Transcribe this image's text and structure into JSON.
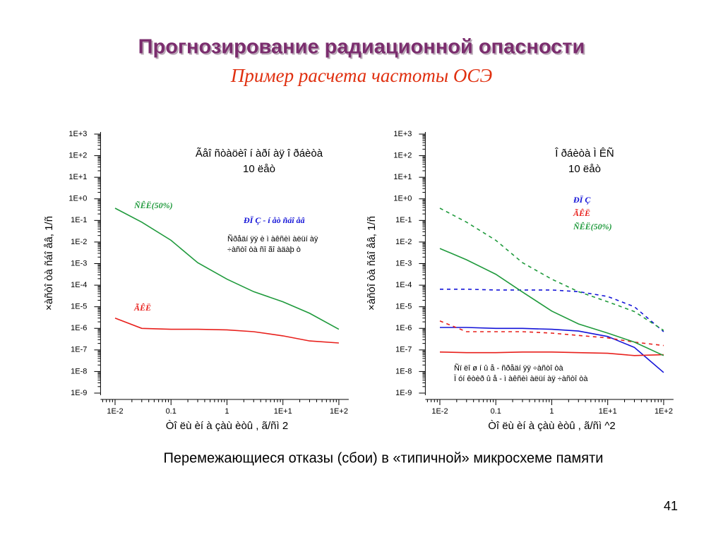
{
  "title": "Прогнозирование радиационной опасности",
  "subtitle": "Пример расчета частоты ОСЭ",
  "caption": "Перемежающиеся отказы (сбои) в «типичной» микросхеме памяти",
  "page_number": "41",
  "chart_data": [
    {
      "type": "line",
      "title": [
        "Ãåî ñòàöèî í àðí àÿ î ðáèòà",
        "10 ëåò"
      ],
      "x_label": "Òî ëù èí à çàù èòû , ã/ñì 2",
      "y_label": "×àñòî òà ñáî åâ, 1/ñ",
      "x_log": true,
      "y_log": true,
      "xlim": [
        0.0055,
        150
      ],
      "ylim": [
        1e-09,
        1000
      ],
      "xticks": [
        {
          "value": 0.01,
          "label": "1E-2"
        },
        0.1,
        1,
        {
          "value": 10,
          "label": "1E+1"
        },
        {
          "value": 100,
          "label": "1E+2"
        }
      ],
      "yticks": [
        {
          "value": 1000,
          "label": "1E+3"
        },
        {
          "value": 100,
          "label": "1E+2"
        },
        {
          "value": 10,
          "label": "1E+1"
        },
        {
          "value": 1,
          "label": "1E+0"
        },
        {
          "value": 0.1,
          "label": "1E-1"
        },
        {
          "value": 0.01,
          "label": "1E-2"
        },
        {
          "value": 0.001,
          "label": "1E-3"
        },
        {
          "value": 0.0001,
          "label": "1E-4"
        },
        {
          "value": 1e-05,
          "label": "1E-5"
        },
        {
          "value": 1e-06,
          "label": "1E-6"
        },
        {
          "value": 1e-07,
          "label": "1E-7"
        },
        {
          "value": 1e-08,
          "label": "1E-8"
        },
        {
          "value": 1e-09,
          "label": "1E-9"
        }
      ],
      "x": [
        0.01,
        0.03,
        0.1,
        0.3,
        1,
        3,
        10,
        30,
        100
      ],
      "series": [
        {
          "name": "ÑÊË(50%)",
          "color": "#1f9a3c",
          "values": [
            0.37,
            0.083,
            0.012,
            0.0011,
            0.00019,
            5e-05,
            1.7e-05,
            5e-06,
            9e-07
          ]
        },
        {
          "name": "ÃÊË",
          "color": "#e8201c",
          "values": [
            3e-06,
            1e-06,
            9e-07,
            9e-07,
            8.5e-07,
            7e-07,
            4.5e-07,
            2.6e-07,
            2.1e-07
          ]
        }
      ],
      "annotations": [
        "ÐÏ Ç - í åò  ñáî åâ"
      ],
      "notes": [
        "Ñðåäí ÿÿ è ì àêñèì àëüí àÿ",
        "÷àñòî òà ñî ãî àäàþ ò"
      ]
    },
    {
      "type": "line",
      "title": [
        "Î ðáèòà Ì ÊÑ",
        "10 ëåò"
      ],
      "x_label": "Òî ëù èí à çàù èòû , ã/ñì ^2",
      "y_label": "×àñòî òà ñáî åâ, 1/ñ",
      "x_log": true,
      "y_log": true,
      "xlim": [
        0.0055,
        150
      ],
      "ylim": [
        1e-09,
        1000
      ],
      "xticks": [
        {
          "value": 0.01,
          "label": "1E-2"
        },
        0.1,
        1,
        {
          "value": 10,
          "label": "1E+1"
        },
        {
          "value": 100,
          "label": "1E+2"
        }
      ],
      "yticks": [
        {
          "value": 1000,
          "label": "1E+3"
        },
        {
          "value": 100,
          "label": "1E+2"
        },
        {
          "value": 10,
          "label": "1E+1"
        },
        {
          "value": 1,
          "label": "1E+0"
        },
        {
          "value": 0.1,
          "label": "1E-1"
        },
        {
          "value": 0.01,
          "label": "1E-2"
        },
        {
          "value": 0.001,
          "label": "1E-3"
        },
        {
          "value": 0.0001,
          "label": "1E-4"
        },
        {
          "value": 1e-05,
          "label": "1E-5"
        },
        {
          "value": 1e-06,
          "label": "1E-6"
        },
        {
          "value": 1e-07,
          "label": "1E-7"
        },
        {
          "value": 1e-08,
          "label": "1E-8"
        },
        {
          "value": 1e-09,
          "label": "1E-9"
        }
      ],
      "x": [
        0.01,
        0.03,
        0.1,
        0.3,
        1,
        3,
        10,
        30,
        100
      ],
      "series": [
        {
          "name": "ÐÏ Ç",
          "color": "#1414d8",
          "values": [
            1.1e-06,
            1.1e-06,
            1e-06,
            1e-06,
            9e-07,
            7.5e-07,
            4.2e-07,
            1.3e-07,
            9e-09
          ],
          "max_values": [
            6.5e-05,
            6.5e-05,
            6e-05,
            6e-05,
            6e-05,
            5e-05,
            3e-05,
            1e-05,
            7e-07
          ]
        },
        {
          "name": "ÃÊË",
          "color": "#e8201c",
          "values": [
            8e-08,
            7.5e-08,
            7.5e-08,
            8e-08,
            8e-08,
            7.5e-08,
            7e-08,
            5.5e-08,
            6e-08
          ],
          "max_values": [
            2.2e-06,
            7e-07,
            7e-07,
            7e-07,
            6e-07,
            4.7e-07,
            3.6e-07,
            2.3e-07,
            1.6e-07
          ]
        },
        {
          "name": "ÑÊË(50%)",
          "color": "#1f9a3c",
          "values": [
            0.005,
            0.0015,
            0.00032,
            4.8e-05,
            6.3e-06,
            1.6e-06,
            6e-07,
            2.3e-07,
            5.5e-08
          ],
          "max_values": [
            0.37,
            0.083,
            0.012,
            0.0011,
            0.00019,
            5e-05,
            1.7e-05,
            6e-06,
            8e-07
          ]
        }
      ],
      "notes": [
        "Ñï ëî ø í û å - ñðåäí ÿÿ ÷àñòî òà",
        "Ï óí êòèð û å - ì àêñèì àëüí àÿ ÷àñòî òà"
      ]
    }
  ]
}
